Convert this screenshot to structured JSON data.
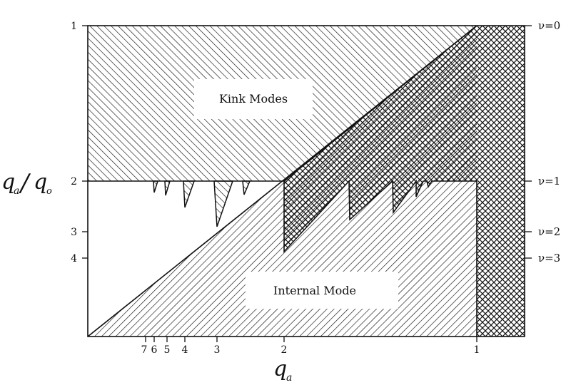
{
  "regions": {
    "kink_label": "Kink Modes",
    "internal_label": "Internal Mode"
  },
  "axes": {
    "y_label_main": "q",
    "y_label_sub_a": "a",
    "y_label_slash": "/",
    "y_label_q": "q",
    "y_label_sub_o": "o",
    "x_label_main": "q",
    "x_label_sub": "a",
    "y_ticks": [
      "1",
      "2",
      "3",
      "4"
    ],
    "x_ticks": [
      "7",
      "6",
      "5",
      "4",
      "3",
      "2",
      "1"
    ],
    "nu_labels": [
      "ν=0",
      "ν=1",
      "ν=2",
      "ν=3"
    ]
  }
}
